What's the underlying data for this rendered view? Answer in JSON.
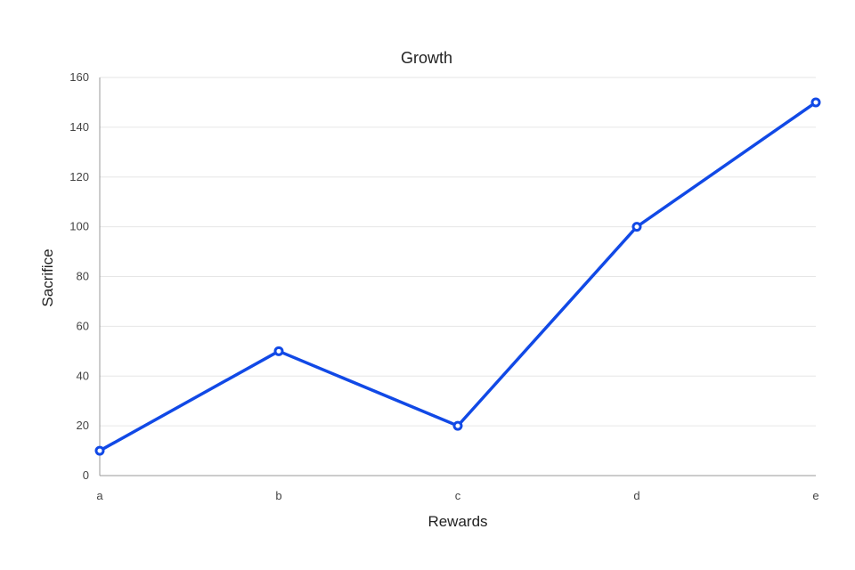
{
  "chart_data": {
    "type": "line",
    "title": "Growth",
    "xlabel": "Rewards",
    "ylabel": "Sacrifice",
    "categories": [
      "a",
      "b",
      "c",
      "d",
      "e"
    ],
    "series": [
      {
        "values": [
          10,
          50,
          20,
          100,
          150
        ]
      }
    ],
    "ylim": [
      0,
      160
    ],
    "yticks": [
      0,
      20,
      40,
      60,
      80,
      100,
      120,
      140,
      160
    ],
    "grid": true,
    "legend": "none",
    "colors": {
      "line": "#1149e6",
      "grid": "#e6e6e6",
      "axis": "#999999"
    }
  }
}
